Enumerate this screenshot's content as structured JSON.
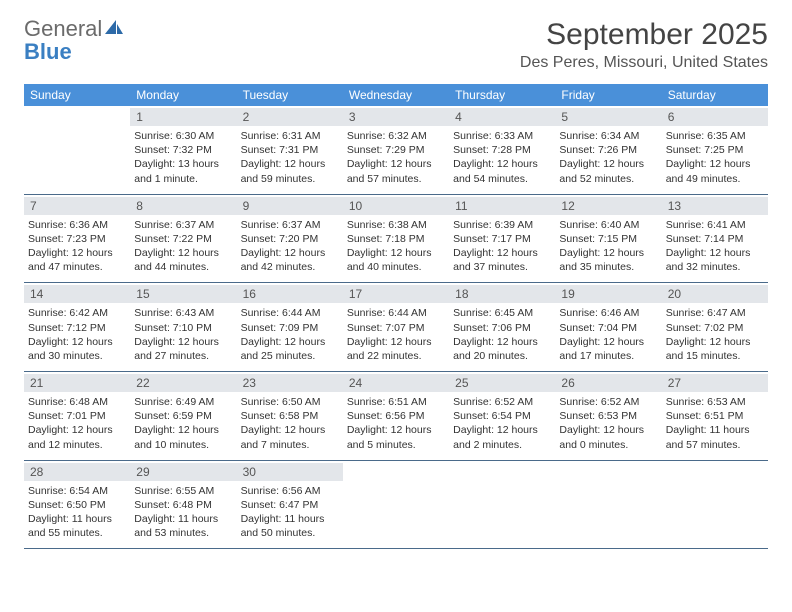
{
  "logo": {
    "text1": "General",
    "text2": "Blue"
  },
  "title": "September 2025",
  "location": "Des Peres, Missouri, United States",
  "weekdays": [
    "Sunday",
    "Monday",
    "Tuesday",
    "Wednesday",
    "Thursday",
    "Friday",
    "Saturday"
  ],
  "colors": {
    "header_bg": "#4a90d9",
    "daynum_bg": "#e3e6ea",
    "row_border": "#4a6a8a",
    "logo_gray": "#6b6b6b",
    "logo_blue": "#3a7fc2"
  },
  "weeks": [
    [
      {
        "n": "",
        "sunrise": "",
        "sunset": "",
        "daylight": ""
      },
      {
        "n": "1",
        "sunrise": "Sunrise: 6:30 AM",
        "sunset": "Sunset: 7:32 PM",
        "daylight": "Daylight: 13 hours and 1 minute."
      },
      {
        "n": "2",
        "sunrise": "Sunrise: 6:31 AM",
        "sunset": "Sunset: 7:31 PM",
        "daylight": "Daylight: 12 hours and 59 minutes."
      },
      {
        "n": "3",
        "sunrise": "Sunrise: 6:32 AM",
        "sunset": "Sunset: 7:29 PM",
        "daylight": "Daylight: 12 hours and 57 minutes."
      },
      {
        "n": "4",
        "sunrise": "Sunrise: 6:33 AM",
        "sunset": "Sunset: 7:28 PM",
        "daylight": "Daylight: 12 hours and 54 minutes."
      },
      {
        "n": "5",
        "sunrise": "Sunrise: 6:34 AM",
        "sunset": "Sunset: 7:26 PM",
        "daylight": "Daylight: 12 hours and 52 minutes."
      },
      {
        "n": "6",
        "sunrise": "Sunrise: 6:35 AM",
        "sunset": "Sunset: 7:25 PM",
        "daylight": "Daylight: 12 hours and 49 minutes."
      }
    ],
    [
      {
        "n": "7",
        "sunrise": "Sunrise: 6:36 AM",
        "sunset": "Sunset: 7:23 PM",
        "daylight": "Daylight: 12 hours and 47 minutes."
      },
      {
        "n": "8",
        "sunrise": "Sunrise: 6:37 AM",
        "sunset": "Sunset: 7:22 PM",
        "daylight": "Daylight: 12 hours and 44 minutes."
      },
      {
        "n": "9",
        "sunrise": "Sunrise: 6:37 AM",
        "sunset": "Sunset: 7:20 PM",
        "daylight": "Daylight: 12 hours and 42 minutes."
      },
      {
        "n": "10",
        "sunrise": "Sunrise: 6:38 AM",
        "sunset": "Sunset: 7:18 PM",
        "daylight": "Daylight: 12 hours and 40 minutes."
      },
      {
        "n": "11",
        "sunrise": "Sunrise: 6:39 AM",
        "sunset": "Sunset: 7:17 PM",
        "daylight": "Daylight: 12 hours and 37 minutes."
      },
      {
        "n": "12",
        "sunrise": "Sunrise: 6:40 AM",
        "sunset": "Sunset: 7:15 PM",
        "daylight": "Daylight: 12 hours and 35 minutes."
      },
      {
        "n": "13",
        "sunrise": "Sunrise: 6:41 AM",
        "sunset": "Sunset: 7:14 PM",
        "daylight": "Daylight: 12 hours and 32 minutes."
      }
    ],
    [
      {
        "n": "14",
        "sunrise": "Sunrise: 6:42 AM",
        "sunset": "Sunset: 7:12 PM",
        "daylight": "Daylight: 12 hours and 30 minutes."
      },
      {
        "n": "15",
        "sunrise": "Sunrise: 6:43 AM",
        "sunset": "Sunset: 7:10 PM",
        "daylight": "Daylight: 12 hours and 27 minutes."
      },
      {
        "n": "16",
        "sunrise": "Sunrise: 6:44 AM",
        "sunset": "Sunset: 7:09 PM",
        "daylight": "Daylight: 12 hours and 25 minutes."
      },
      {
        "n": "17",
        "sunrise": "Sunrise: 6:44 AM",
        "sunset": "Sunset: 7:07 PM",
        "daylight": "Daylight: 12 hours and 22 minutes."
      },
      {
        "n": "18",
        "sunrise": "Sunrise: 6:45 AM",
        "sunset": "Sunset: 7:06 PM",
        "daylight": "Daylight: 12 hours and 20 minutes."
      },
      {
        "n": "19",
        "sunrise": "Sunrise: 6:46 AM",
        "sunset": "Sunset: 7:04 PM",
        "daylight": "Daylight: 12 hours and 17 minutes."
      },
      {
        "n": "20",
        "sunrise": "Sunrise: 6:47 AM",
        "sunset": "Sunset: 7:02 PM",
        "daylight": "Daylight: 12 hours and 15 minutes."
      }
    ],
    [
      {
        "n": "21",
        "sunrise": "Sunrise: 6:48 AM",
        "sunset": "Sunset: 7:01 PM",
        "daylight": "Daylight: 12 hours and 12 minutes."
      },
      {
        "n": "22",
        "sunrise": "Sunrise: 6:49 AM",
        "sunset": "Sunset: 6:59 PM",
        "daylight": "Daylight: 12 hours and 10 minutes."
      },
      {
        "n": "23",
        "sunrise": "Sunrise: 6:50 AM",
        "sunset": "Sunset: 6:58 PM",
        "daylight": "Daylight: 12 hours and 7 minutes."
      },
      {
        "n": "24",
        "sunrise": "Sunrise: 6:51 AM",
        "sunset": "Sunset: 6:56 PM",
        "daylight": "Daylight: 12 hours and 5 minutes."
      },
      {
        "n": "25",
        "sunrise": "Sunrise: 6:52 AM",
        "sunset": "Sunset: 6:54 PM",
        "daylight": "Daylight: 12 hours and 2 minutes."
      },
      {
        "n": "26",
        "sunrise": "Sunrise: 6:52 AM",
        "sunset": "Sunset: 6:53 PM",
        "daylight": "Daylight: 12 hours and 0 minutes."
      },
      {
        "n": "27",
        "sunrise": "Sunrise: 6:53 AM",
        "sunset": "Sunset: 6:51 PM",
        "daylight": "Daylight: 11 hours and 57 minutes."
      }
    ],
    [
      {
        "n": "28",
        "sunrise": "Sunrise: 6:54 AM",
        "sunset": "Sunset: 6:50 PM",
        "daylight": "Daylight: 11 hours and 55 minutes."
      },
      {
        "n": "29",
        "sunrise": "Sunrise: 6:55 AM",
        "sunset": "Sunset: 6:48 PM",
        "daylight": "Daylight: 11 hours and 53 minutes."
      },
      {
        "n": "30",
        "sunrise": "Sunrise: 6:56 AM",
        "sunset": "Sunset: 6:47 PM",
        "daylight": "Daylight: 11 hours and 50 minutes."
      },
      {
        "n": "",
        "sunrise": "",
        "sunset": "",
        "daylight": ""
      },
      {
        "n": "",
        "sunrise": "",
        "sunset": "",
        "daylight": ""
      },
      {
        "n": "",
        "sunrise": "",
        "sunset": "",
        "daylight": ""
      },
      {
        "n": "",
        "sunrise": "",
        "sunset": "",
        "daylight": ""
      }
    ]
  ]
}
